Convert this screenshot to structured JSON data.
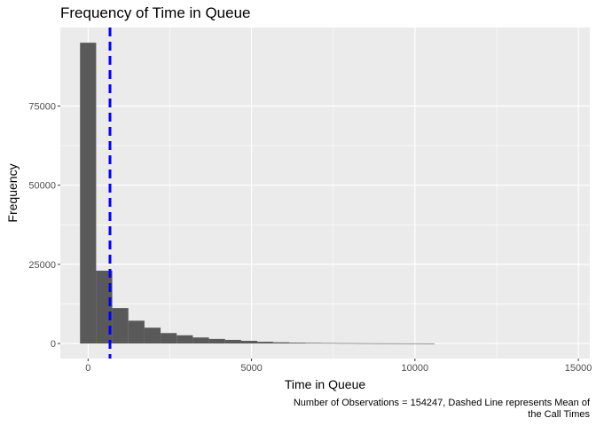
{
  "chart_data": {
    "type": "bar",
    "title": "Frequency of Time in Queue",
    "xlabel": "Time in Queue",
    "ylabel": "Frequency",
    "caption_lines": [
      "Number of Observations = 154247, Dashed Line represents Mean of",
      "the Call Times"
    ],
    "x_ticks": [
      0,
      5000,
      10000,
      15000
    ],
    "x_tick_labels": [
      "0",
      "5000",
      "10000",
      "15000"
    ],
    "y_ticks": [
      0,
      25000,
      50000,
      75000
    ],
    "y_tick_labels": [
      "0",
      "25000",
      "50000",
      "75000"
    ],
    "xlim": [
      -850,
      15350
    ],
    "ylim": [
      -4750,
      99800
    ],
    "bin_width": 493,
    "bin_centers": [
      0,
      493,
      986,
      1479,
      1972,
      2465,
      2958,
      3451,
      3944,
      4437,
      4930,
      5423,
      5916,
      6409,
      6902,
      7395,
      7888,
      8381,
      8874,
      9367,
      9860,
      10353
    ],
    "values": [
      95000,
      23000,
      11200,
      7200,
      5000,
      3300,
      2600,
      1900,
      1450,
      1150,
      850,
      550,
      380,
      260,
      190,
      140,
      110,
      85,
      65,
      50,
      40,
      30
    ],
    "mean_line": {
      "x": 670,
      "color": "#0000ff",
      "style": "dashed"
    },
    "bar_color": "#595959",
    "panel_background": "#ebebeb",
    "grid": true,
    "grid_color": "#ffffff"
  }
}
